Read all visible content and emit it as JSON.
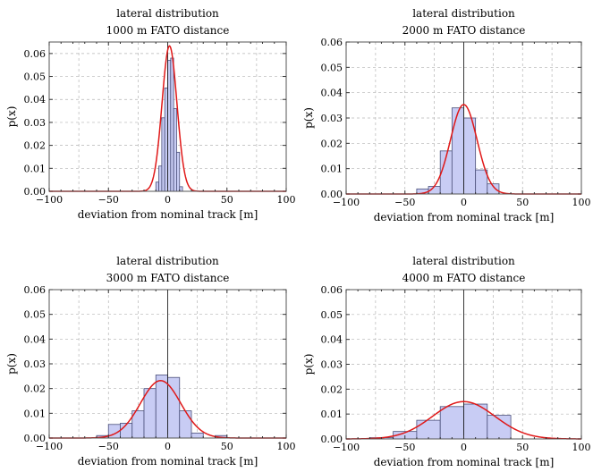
{
  "chart_data": [
    {
      "type": "bar",
      "title": "lateral distribution",
      "subtitle": "1000 m FATO distance",
      "xlabel": "deviation from nominal track [m]",
      "ylabel": "p(x)",
      "xlim": [
        -100,
        100
      ],
      "ylim": [
        0,
        0.065
      ],
      "xticks": [
        "−100",
        "−50",
        "0",
        "50",
        "100"
      ],
      "yticks": [
        "0.00",
        "0.01",
        "0.02",
        "0.03",
        "0.04",
        "0.05",
        "0.06"
      ],
      "ytick_values": [
        0,
        0.01,
        0.02,
        0.03,
        0.04,
        0.05,
        0.06
      ],
      "grid": true,
      "bins": [
        {
          "x0": -10,
          "x1": -7.5,
          "value": 0.004
        },
        {
          "x0": -7.5,
          "x1": -5,
          "value": 0.011
        },
        {
          "x0": -5,
          "x1": -2.5,
          "value": 0.032
        },
        {
          "x0": -2.5,
          "x1": 0,
          "value": 0.045
        },
        {
          "x0": 0,
          "x1": 2.5,
          "value": 0.057
        },
        {
          "x0": 2.5,
          "x1": 5,
          "value": 0.058
        },
        {
          "x0": 5,
          "x1": 7.5,
          "value": 0.036
        },
        {
          "x0": 7.5,
          "x1": 10,
          "value": 0.017
        },
        {
          "x0": 10,
          "x1": 12.5,
          "value": 0.002
        }
      ],
      "fit": {
        "mean": 1.5,
        "sd": 6.3,
        "peak": 0.0633
      }
    },
    {
      "type": "bar",
      "title": "lateral distribution",
      "subtitle": "2000 m FATO distance",
      "xlabel": "deviation from nominal track [m]",
      "ylabel": "p(x)",
      "xlim": [
        -100,
        100
      ],
      "ylim": [
        0,
        0.06
      ],
      "xticks": [
        "−100",
        "−50",
        "0",
        "50",
        "100"
      ],
      "yticks": [
        "0.00",
        "0.01",
        "0.02",
        "0.03",
        "0.04",
        "0.05",
        "0.06"
      ],
      "ytick_values": [
        0,
        0.01,
        0.02,
        0.03,
        0.04,
        0.05,
        0.06
      ],
      "grid": true,
      "bins": [
        {
          "x0": -40,
          "x1": -30,
          "value": 0.002
        },
        {
          "x0": -30,
          "x1": -20,
          "value": 0.003
        },
        {
          "x0": -20,
          "x1": -10,
          "value": 0.017
        },
        {
          "x0": -10,
          "x1": 0,
          "value": 0.034
        },
        {
          "x0": 0,
          "x1": 10,
          "value": 0.03
        },
        {
          "x0": 10,
          "x1": 20,
          "value": 0.0095
        },
        {
          "x0": 20,
          "x1": 30,
          "value": 0.004
        }
      ],
      "fit": {
        "mean": 0,
        "sd": 11.3,
        "peak": 0.0353
      }
    },
    {
      "type": "bar",
      "title": "lateral distribution",
      "subtitle": "3000 m FATO distance",
      "xlabel": "deviation from nominal track [m]",
      "ylabel": "p(x)",
      "xlim": [
        -100,
        100
      ],
      "ylim": [
        0,
        0.06
      ],
      "xticks": [
        "−100",
        "−50",
        "0",
        "50",
        "100"
      ],
      "yticks": [
        "0.00",
        "0.01",
        "0.02",
        "0.03",
        "0.04",
        "0.05",
        "0.06"
      ],
      "ytick_values": [
        0,
        0.01,
        0.02,
        0.03,
        0.04,
        0.05,
        0.06
      ],
      "grid": true,
      "bins": [
        {
          "x0": -60,
          "x1": -50,
          "value": 0.001
        },
        {
          "x0": -50,
          "x1": -40,
          "value": 0.0055
        },
        {
          "x0": -40,
          "x1": -30,
          "value": 0.006
        },
        {
          "x0": -30,
          "x1": -20,
          "value": 0.011
        },
        {
          "x0": -20,
          "x1": -10,
          "value": 0.02
        },
        {
          "x0": -10,
          "x1": 0,
          "value": 0.0255
        },
        {
          "x0": 0,
          "x1": 10,
          "value": 0.0245
        },
        {
          "x0": 10,
          "x1": 20,
          "value": 0.011
        },
        {
          "x0": 20,
          "x1": 30,
          "value": 0.002
        },
        {
          "x0": 40,
          "x1": 50,
          "value": 0.001
        }
      ],
      "fit": {
        "mean": -6,
        "sd": 17,
        "peak": 0.0232
      }
    },
    {
      "type": "bar",
      "title": "lateral distribution",
      "subtitle": "4000 m FATO distance",
      "xlabel": "deviation from nominal track [m]",
      "ylabel": "p(x)",
      "xlim": [
        -100,
        100
      ],
      "ylim": [
        0,
        0.06
      ],
      "xticks": [
        "−100",
        "−50",
        "0",
        "50",
        "100"
      ],
      "yticks": [
        "0.00",
        "0.01",
        "0.02",
        "0.03",
        "0.04",
        "0.05",
        "0.06"
      ],
      "ytick_values": [
        0,
        0.01,
        0.02,
        0.03,
        0.04,
        0.05,
        0.06
      ],
      "grid": true,
      "bins": [
        {
          "x0": -80,
          "x1": -60,
          "value": 0.0005
        },
        {
          "x0": -60,
          "x1": -40,
          "value": 0.003
        },
        {
          "x0": -40,
          "x1": -20,
          "value": 0.0075
        },
        {
          "x0": -20,
          "x1": 0,
          "value": 0.013
        },
        {
          "x0": 0,
          "x1": 20,
          "value": 0.014
        },
        {
          "x0": 20,
          "x1": 40,
          "value": 0.0095
        }
      ],
      "fit": {
        "mean": 0,
        "sd": 26.5,
        "peak": 0.015
      }
    }
  ]
}
